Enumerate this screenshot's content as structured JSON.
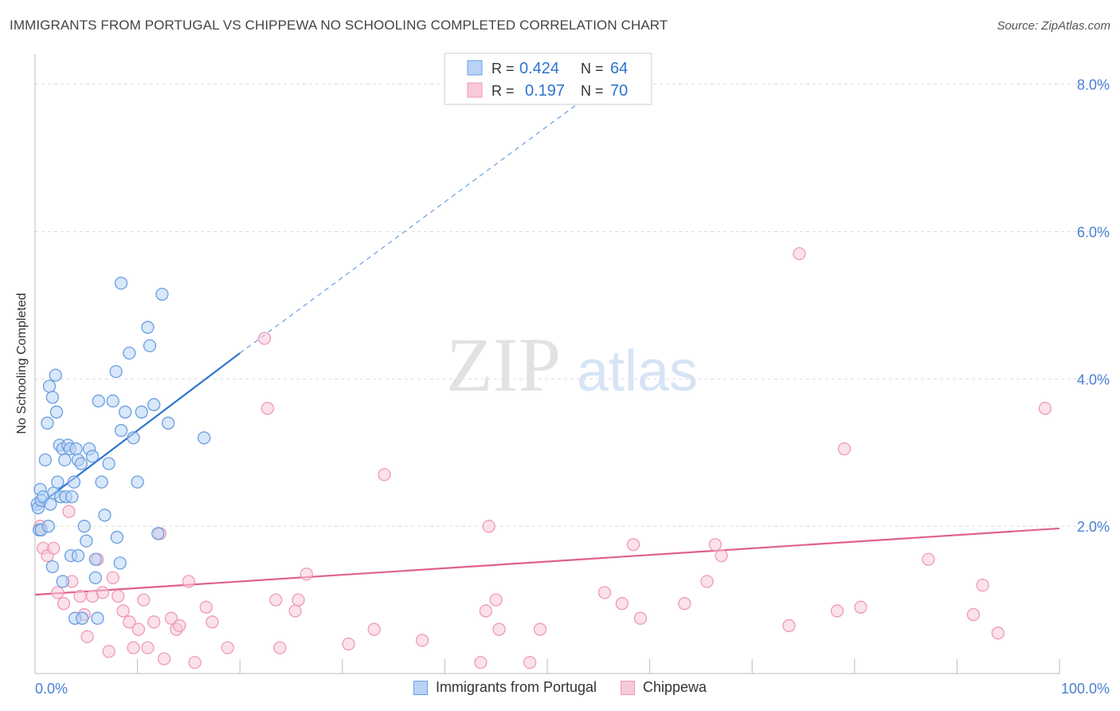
{
  "header": {
    "title": "IMMIGRANTS FROM PORTUGAL VS CHIPPEWA NO SCHOOLING COMPLETED CORRELATION CHART",
    "source": "Source: ZipAtlas.com"
  },
  "watermark": {
    "zip": "ZIP",
    "atlas": "atlas"
  },
  "colors": {
    "blue": "#2e74d0",
    "blue_fill": "#b8d3f4",
    "blue_stroke": "#6a9ee0",
    "pink": "#e0608e",
    "pink_fill": "#f8c9d8",
    "pink_stroke": "#ef9ab7",
    "tick_label": "#4a7fd4",
    "grid": "#dddddd"
  },
  "legend_top": [
    {
      "r_label": "R =",
      "r_value": "0.424",
      "n_label": "N =",
      "n_value": "64"
    },
    {
      "r_label": "R =",
      "r_value": "0.197",
      "n_label": "N =",
      "n_value": "70"
    }
  ],
  "chart_data": {
    "type": "scatter",
    "title": "IMMIGRANTS FROM PORTUGAL VS CHIPPEWA NO SCHOOLING COMPLETED CORRELATION CHART",
    "xlabel": "",
    "ylabel": "No Schooling Completed",
    "xlim": [
      0,
      100
    ],
    "ylim": [
      0,
      8.3
    ],
    "x_tick_labels": [
      {
        "value": 0,
        "label": "0.0%"
      },
      {
        "value": 100,
        "label": "100.0%"
      }
    ],
    "y_ticks": [
      {
        "value": 2,
        "label": "2.0%"
      },
      {
        "value": 4,
        "label": "4.0%"
      },
      {
        "value": 6,
        "label": "6.0%"
      },
      {
        "value": 8,
        "label": "8.0%"
      }
    ],
    "grid": true,
    "legend_position": "bottom-center",
    "series": [
      {
        "name": "Immigrants from Portugal",
        "color": "#6a9ee0",
        "r": 0.424,
        "n": 64,
        "trend": {
          "x0": 0,
          "y0": 2.25,
          "x1": 20,
          "y1": 4.35,
          "dash_to_x": 57.5,
          "dash_to_y": 8.2
        },
        "points": [
          [
            0.2,
            2.3
          ],
          [
            0.3,
            2.25
          ],
          [
            0.4,
            1.95
          ],
          [
            0.5,
            2.5
          ],
          [
            0.6,
            2.35
          ],
          [
            0.8,
            2.4
          ],
          [
            1.0,
            2.9
          ],
          [
            1.2,
            3.4
          ],
          [
            1.4,
            3.9
          ],
          [
            1.5,
            2.3
          ],
          [
            1.7,
            3.75
          ],
          [
            1.8,
            2.45
          ],
          [
            2.0,
            4.05
          ],
          [
            2.1,
            3.55
          ],
          [
            2.2,
            2.6
          ],
          [
            2.4,
            3.1
          ],
          [
            2.5,
            2.4
          ],
          [
            2.7,
            3.05
          ],
          [
            2.9,
            2.9
          ],
          [
            3.0,
            2.4
          ],
          [
            3.2,
            3.1
          ],
          [
            3.4,
            3.05
          ],
          [
            3.6,
            2.4
          ],
          [
            3.8,
            2.6
          ],
          [
            4.0,
            3.05
          ],
          [
            4.2,
            2.9
          ],
          [
            4.5,
            2.85
          ],
          [
            4.8,
            2.0
          ],
          [
            5.0,
            1.8
          ],
          [
            5.3,
            3.05
          ],
          [
            5.6,
            2.95
          ],
          [
            5.9,
            1.3
          ],
          [
            6.2,
            3.7
          ],
          [
            6.5,
            2.6
          ],
          [
            6.8,
            2.15
          ],
          [
            7.2,
            2.85
          ],
          [
            7.6,
            3.7
          ],
          [
            8.0,
            1.85
          ],
          [
            8.4,
            3.3
          ],
          [
            8.8,
            3.55
          ],
          [
            9.2,
            4.35
          ],
          [
            9.6,
            3.2
          ],
          [
            10.0,
            2.6
          ],
          [
            10.4,
            3.55
          ],
          [
            11.0,
            4.7
          ],
          [
            11.2,
            4.45
          ],
          [
            11.6,
            3.65
          ],
          [
            12.0,
            1.9
          ],
          [
            12.4,
            5.15
          ],
          [
            13.0,
            3.4
          ],
          [
            16.5,
            3.2
          ],
          [
            8.4,
            5.3
          ],
          [
            7.9,
            4.1
          ],
          [
            3.9,
            0.75
          ],
          [
            4.6,
            0.75
          ],
          [
            5.9,
            1.55
          ],
          [
            6.1,
            0.75
          ],
          [
            8.3,
            1.5
          ],
          [
            2.7,
            1.25
          ],
          [
            1.7,
            1.45
          ],
          [
            3.5,
            1.6
          ],
          [
            4.2,
            1.6
          ],
          [
            0.6,
            1.95
          ],
          [
            1.3,
            2.0
          ]
        ]
      },
      {
        "name": "Chippewa",
        "color": "#ef9ab7",
        "r": 0.197,
        "n": 70,
        "trend": {
          "x0": 0,
          "y0": 1.07,
          "x1": 100,
          "y1": 1.97
        },
        "points": [
          [
            0.5,
            2.0
          ],
          [
            0.8,
            1.7
          ],
          [
            1.2,
            1.6
          ],
          [
            1.8,
            1.7
          ],
          [
            2.2,
            1.1
          ],
          [
            2.8,
            0.95
          ],
          [
            3.3,
            2.2
          ],
          [
            3.6,
            1.25
          ],
          [
            4.4,
            1.05
          ],
          [
            4.8,
            0.8
          ],
          [
            5.1,
            0.5
          ],
          [
            5.6,
            1.05
          ],
          [
            6.1,
            1.55
          ],
          [
            6.6,
            1.1
          ],
          [
            7.2,
            0.3
          ],
          [
            7.6,
            1.3
          ],
          [
            8.1,
            1.05
          ],
          [
            8.6,
            0.85
          ],
          [
            9.2,
            0.7
          ],
          [
            9.6,
            0.35
          ],
          [
            10.1,
            0.6
          ],
          [
            10.6,
            1.0
          ],
          [
            11.0,
            0.35
          ],
          [
            11.6,
            0.7
          ],
          [
            12.2,
            1.9
          ],
          [
            12.6,
            0.2
          ],
          [
            13.3,
            0.75
          ],
          [
            13.8,
            0.6
          ],
          [
            14.1,
            0.65
          ],
          [
            15.0,
            1.25
          ],
          [
            15.6,
            0.15
          ],
          [
            16.7,
            0.9
          ],
          [
            17.3,
            0.7
          ],
          [
            18.8,
            0.35
          ],
          [
            22.4,
            4.55
          ],
          [
            22.7,
            3.6
          ],
          [
            23.5,
            1.0
          ],
          [
            23.9,
            0.35
          ],
          [
            25.4,
            0.85
          ],
          [
            25.7,
            1.0
          ],
          [
            26.5,
            1.35
          ],
          [
            30.6,
            0.4
          ],
          [
            33.1,
            0.6
          ],
          [
            34.1,
            2.7
          ],
          [
            37.8,
            0.45
          ],
          [
            43.5,
            0.15
          ],
          [
            44.0,
            0.85
          ],
          [
            44.3,
            2.0
          ],
          [
            45.3,
            0.6
          ],
          [
            48.3,
            0.15
          ],
          [
            49.3,
            0.6
          ],
          [
            55.6,
            1.1
          ],
          [
            57.3,
            0.95
          ],
          [
            58.4,
            1.75
          ],
          [
            59.1,
            0.75
          ],
          [
            63.4,
            0.95
          ],
          [
            65.6,
            1.25
          ],
          [
            66.4,
            1.75
          ],
          [
            67.0,
            1.6
          ],
          [
            73.6,
            0.65
          ],
          [
            74.6,
            5.7
          ],
          [
            78.3,
            0.85
          ],
          [
            79.0,
            3.05
          ],
          [
            80.6,
            0.9
          ],
          [
            87.2,
            1.55
          ],
          [
            91.6,
            0.8
          ],
          [
            92.5,
            1.2
          ],
          [
            94.0,
            0.55
          ],
          [
            98.6,
            3.6
          ],
          [
            45.0,
            1.0
          ]
        ]
      }
    ]
  }
}
